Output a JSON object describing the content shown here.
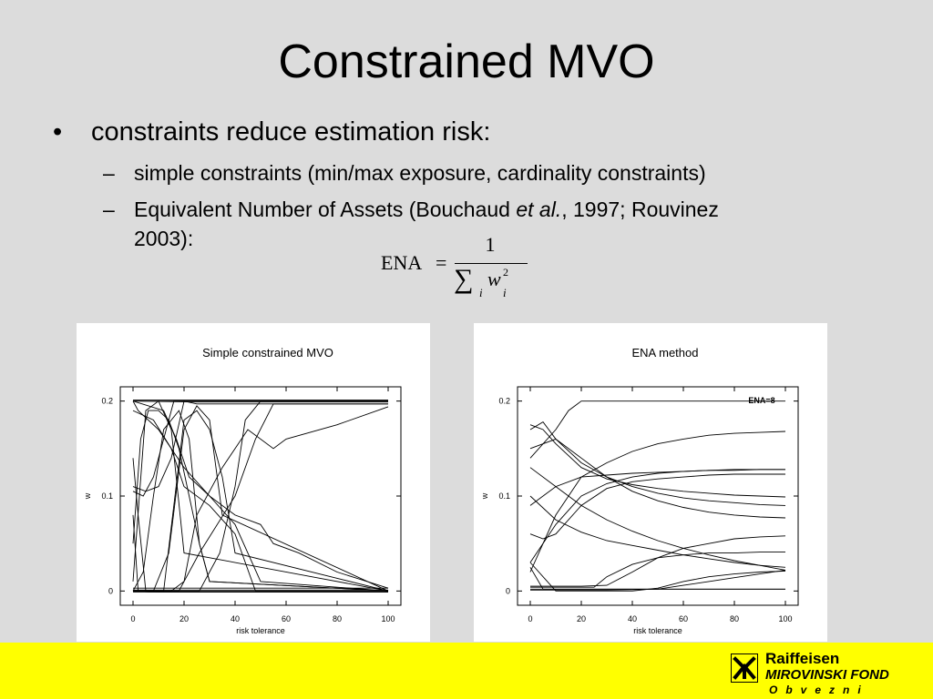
{
  "slide": {
    "title": "Constrained MVO",
    "bullet_marker": "•",
    "bullet_text": "constraints reduce estimation risk:",
    "dash": "–",
    "sub_items": {
      "first": "simple constraints (min/max exposure, cardinality constraints)",
      "second_pre": "Equivalent Number of Assets (Bouchaud ",
      "second_italic": "et al.",
      "second_post": ", 1997; Rouvinez",
      "second_line2": "2003):"
    },
    "formula": {
      "lhs": "ENA",
      "eq": "=",
      "numerator": "1",
      "sum_symbol": "∑",
      "index": "i",
      "variable": "w",
      "exponent": "2"
    }
  },
  "footer": {
    "brand_line1": "Raiffeisen",
    "brand_line2": "MIROVINSKI FOND",
    "brand_line3": "Obvezni",
    "background_color": "#ffff00"
  },
  "chart_data": [
    {
      "type": "line",
      "title": "Simple constrained MVO",
      "xlabel": "risk tolerance",
      "ylabel": "w",
      "xlim": [
        -5,
        105
      ],
      "ylim": [
        -0.015,
        0.215
      ],
      "xticks": [
        "0",
        "20",
        "40",
        "60",
        "80",
        "100"
      ],
      "yticks": [
        "0",
        "0.1",
        "0.2"
      ],
      "grid": false,
      "series": [
        {
          "x": [
            0,
            10,
            20,
            100
          ],
          "y": [
            0.201,
            0.201,
            0.201,
            0.201
          ]
        },
        {
          "x": [
            0,
            20,
            25,
            100
          ],
          "y": [
            0.2,
            0.2,
            0.197,
            0.197
          ]
        },
        {
          "x": [
            0,
            25,
            100
          ],
          "y": [
            0.2,
            0.199,
            0.199
          ]
        },
        {
          "x": [
            0,
            12,
            20,
            30,
            100
          ],
          "y": [
            0.0,
            0.0,
            0.0,
            0.0,
            0.0
          ]
        },
        {
          "x": [
            0,
            30,
            100
          ],
          "y": [
            0.001,
            0.001,
            0.001
          ]
        },
        {
          "x": [
            0,
            3,
            100
          ],
          "y": [
            0.003,
            0.003,
            0.003
          ]
        },
        {
          "x": [
            0,
            5,
            100
          ],
          "y": [
            -0.001,
            -0.001,
            -0.001
          ]
        },
        {
          "x": [
            0,
            2,
            5,
            10,
            100
          ],
          "y": [
            0.14,
            0.08,
            0.0,
            -0.001,
            -0.001
          ]
        },
        {
          "x": [
            0,
            2,
            6,
            10,
            100
          ],
          "y": [
            0.08,
            0.0,
            -0.001,
            -0.001,
            -0.001
          ]
        },
        {
          "x": [
            0,
            4,
            8,
            12,
            16,
            18,
            20,
            100
          ],
          "y": [
            0.105,
            0.1,
            0.12,
            0.16,
            0.2,
            0.2,
            0.2,
            0.2
          ]
        },
        {
          "x": [
            0,
            5,
            10,
            15,
            20,
            100
          ],
          "y": [
            0.11,
            0.105,
            0.11,
            0.14,
            0.2,
            0.2
          ]
        },
        {
          "x": [
            0,
            3,
            6,
            10,
            14,
            18,
            22,
            26,
            30,
            100
          ],
          "y": [
            0.05,
            0.16,
            0.19,
            0.19,
            0.18,
            0.15,
            0.1,
            0.05,
            0.01,
            0.0
          ]
        },
        {
          "x": [
            0,
            4,
            8,
            12,
            18,
            22,
            26,
            30,
            100
          ],
          "y": [
            0.0,
            0.02,
            0.1,
            0.17,
            0.19,
            0.16,
            0.05,
            0.01,
            0.0
          ]
        },
        {
          "x": [
            0,
            5,
            10,
            15,
            20,
            100
          ],
          "y": [
            0.01,
            0.19,
            0.2,
            0.17,
            0.04,
            0.0
          ]
        },
        {
          "x": [
            0,
            8,
            14,
            20,
            25,
            30,
            35,
            100
          ],
          "y": [
            0.0,
            0.0,
            0.04,
            0.17,
            0.195,
            0.18,
            0.08,
            0.0
          ]
        },
        {
          "x": [
            0,
            12,
            20,
            25,
            30,
            35,
            40,
            100
          ],
          "y": [
            0.0,
            0.0,
            0.18,
            0.19,
            0.17,
            0.12,
            0.04,
            0.0
          ]
        },
        {
          "x": [
            0,
            2,
            10,
            20,
            30,
            40,
            50,
            100
          ],
          "y": [
            0.2,
            0.19,
            0.17,
            0.13,
            0.1,
            0.07,
            0.01,
            0.0
          ]
        },
        {
          "x": [
            0,
            8,
            15,
            20,
            30,
            40,
            48,
            100
          ],
          "y": [
            0.19,
            0.18,
            0.15,
            0.11,
            0.09,
            0.06,
            0.0,
            0.0
          ]
        },
        {
          "x": [
            0,
            12,
            17,
            22,
            30,
            40,
            50,
            55,
            65,
            80,
            100
          ],
          "y": [
            0.2,
            0.19,
            0.16,
            0.12,
            0.1,
            0.08,
            0.07,
            0.05,
            0.04,
            0.02,
            0.003
          ]
        },
        {
          "x": [
            0,
            15,
            20,
            25,
            35,
            45,
            55,
            60,
            80,
            100
          ],
          "y": [
            0.0,
            0.0,
            0.01,
            0.08,
            0.13,
            0.17,
            0.15,
            0.16,
            0.175,
            0.194
          ]
        },
        {
          "x": [
            0,
            18,
            26,
            40,
            48,
            55,
            100
          ],
          "y": [
            0.0,
            0.0,
            0.04,
            0.1,
            0.16,
            0.197,
            0.197
          ]
        },
        {
          "x": [
            0,
            26,
            34,
            40,
            44,
            50,
            100
          ],
          "y": [
            0.0,
            0.0,
            0.04,
            0.11,
            0.18,
            0.2,
            0.2
          ]
        }
      ]
    },
    {
      "type": "line",
      "title": "ENA method",
      "xlabel": "risk tolerance",
      "ylabel": "w",
      "xlim": [
        -5,
        105
      ],
      "ylim": [
        -0.015,
        0.215
      ],
      "xticks": [
        "0",
        "20",
        "40",
        "60",
        "80",
        "100"
      ],
      "yticks": [
        "0",
        "0.1",
        "0.2"
      ],
      "annotation": "ENA=8",
      "grid": false,
      "series": [
        {
          "x": [
            0,
            10,
            15,
            20,
            100
          ],
          "y": [
            0.14,
            0.17,
            0.19,
            0.2,
            0.2
          ]
        },
        {
          "x": [
            0,
            10,
            20,
            30,
            40,
            50,
            60,
            70,
            80,
            90,
            100
          ],
          "y": [
            0.02,
            0.08,
            0.12,
            0.135,
            0.147,
            0.155,
            0.16,
            0.164,
            0.166,
            0.167,
            0.168
          ]
        },
        {
          "x": [
            0,
            10,
            20,
            30,
            40,
            50,
            60,
            70,
            80,
            90,
            100
          ],
          "y": [
            0.03,
            0.07,
            0.1,
            0.113,
            0.12,
            0.124,
            0.126,
            0.127,
            0.128,
            0.128,
            0.128
          ]
        },
        {
          "x": [
            0,
            10,
            20,
            30,
            40,
            50,
            60,
            70,
            80,
            90,
            100
          ],
          "y": [
            0.09,
            0.11,
            0.12,
            0.122,
            0.124,
            0.125,
            0.126,
            0.127,
            0.127,
            0.128,
            0.128
          ]
        },
        {
          "x": [
            0,
            5,
            10,
            20,
            30,
            40,
            50,
            60,
            70,
            80,
            90,
            100
          ],
          "y": [
            0.175,
            0.17,
            0.155,
            0.13,
            0.118,
            0.112,
            0.108,
            0.105,
            0.103,
            0.101,
            0.1,
            0.099
          ]
        },
        {
          "x": [
            0,
            5,
            10,
            20,
            30,
            40,
            50,
            60,
            70,
            80,
            90,
            100
          ],
          "y": [
            0.17,
            0.178,
            0.16,
            0.135,
            0.12,
            0.11,
            0.103,
            0.098,
            0.095,
            0.093,
            0.091,
            0.09
          ]
        },
        {
          "x": [
            0,
            10,
            20,
            30,
            40,
            50,
            60,
            70,
            80,
            90,
            100
          ],
          "y": [
            0.15,
            0.16,
            0.14,
            0.12,
            0.105,
            0.095,
            0.088,
            0.083,
            0.08,
            0.078,
            0.077
          ]
        },
        {
          "x": [
            0,
            10,
            20,
            30,
            40,
            50,
            60,
            70,
            80,
            90,
            100
          ],
          "y": [
            0.13,
            0.11,
            0.09,
            0.075,
            0.063,
            0.053,
            0.045,
            0.038,
            0.032,
            0.027,
            0.022
          ]
        },
        {
          "x": [
            0,
            10,
            20,
            30,
            40,
            50,
            60,
            70,
            80,
            90,
            100
          ],
          "y": [
            0.1,
            0.075,
            0.062,
            0.053,
            0.048,
            0.043,
            0.038,
            0.034,
            0.03,
            0.027,
            0.025
          ]
        },
        {
          "x": [
            0,
            5,
            10,
            20,
            30,
            40,
            50,
            60,
            70,
            80,
            90,
            100
          ],
          "y": [
            0.06,
            0.055,
            0.06,
            0.09,
            0.108,
            0.115,
            0.118,
            0.12,
            0.122,
            0.123,
            0.123,
            0.123
          ]
        },
        {
          "x": [
            0,
            5,
            10,
            20,
            30,
            40,
            50,
            60,
            70,
            80,
            90,
            100
          ],
          "y": [
            0.005,
            0.005,
            0.005,
            0.005,
            0.006,
            0.02,
            0.035,
            0.045,
            0.05,
            0.055,
            0.057,
            0.058
          ]
        },
        {
          "x": [
            0,
            10,
            20,
            25,
            30,
            40,
            50,
            60,
            70,
            80,
            90,
            100
          ],
          "y": [
            0.004,
            0.004,
            0.004,
            0.004,
            0.015,
            0.028,
            0.035,
            0.038,
            0.04,
            0.04,
            0.041,
            0.041
          ]
        },
        {
          "x": [
            0,
            10,
            20,
            30,
            40,
            50,
            60,
            70,
            80,
            90,
            100
          ],
          "y": [
            0.03,
            0.0,
            0.0,
            0.0,
            0.0,
            0.003,
            0.01,
            0.015,
            0.018,
            0.02,
            0.021
          ]
        },
        {
          "x": [
            0,
            5,
            10,
            100
          ],
          "y": [
            0.025,
            0.002,
            0.002,
            0.002
          ]
        },
        {
          "x": [
            0,
            20,
            40,
            100
          ],
          "y": [
            0.002,
            0.002,
            0.002,
            0.002
          ]
        },
        {
          "x": [
            0,
            30,
            50,
            60,
            70,
            80,
            90,
            100
          ],
          "y": [
            0.001,
            0.001,
            0.002,
            0.006,
            0.01,
            0.014,
            0.018,
            0.022
          ]
        }
      ]
    }
  ]
}
